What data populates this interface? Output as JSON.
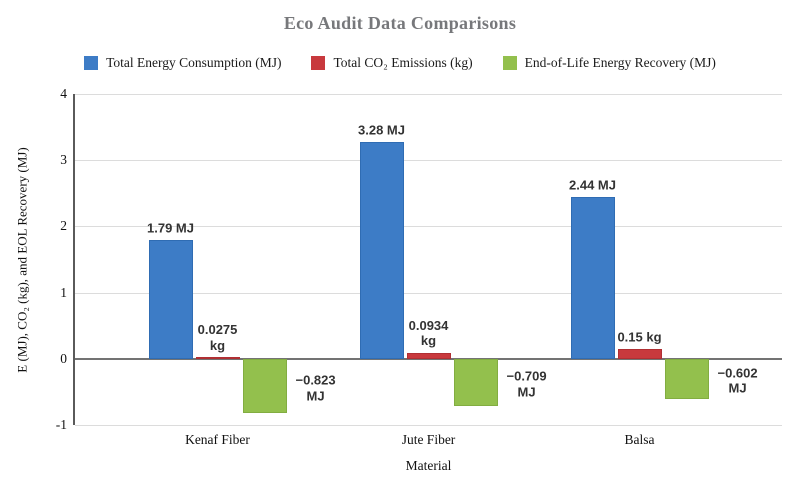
{
  "chart_data": {
    "type": "bar",
    "title": "Eco Audit Data Comparisons",
    "categories": [
      "Kenaf Fiber",
      "Jute Fiber",
      "Balsa"
    ],
    "series": [
      {
        "name": "Total Energy Consumption (MJ)",
        "color": "#3d7cc6",
        "border_color": "#2f6cb3",
        "values": [
          1.79,
          3.28,
          2.44
        ],
        "labels": [
          "1.79 MJ",
          "3.28 MJ",
          "2.44 MJ"
        ]
      },
      {
        "name": "Total CO₂ Emissions (kg)",
        "color": "#c8393d",
        "border_color": "#b02f33",
        "values": [
          0.0275,
          0.0934,
          0.15
        ],
        "labels": [
          "0.0275\nkg",
          "0.0934\nkg",
          "0.15 kg"
        ]
      },
      {
        "name": "End-of-Life Energy Recovery (MJ)",
        "color": "#93c04d",
        "border_color": "#82ad41",
        "values": [
          -0.823,
          -0.709,
          -0.602
        ],
        "labels": [
          "−0.823\nMJ",
          "−0.709\nMJ",
          "−0.602\nMJ"
        ]
      }
    ],
    "xlabel": "Material",
    "ylabel": "E (MJ), CO₂ (kg), and EOL Recovery (MJ)",
    "ylim": [
      -1,
      4
    ],
    "yticks": [
      4,
      3,
      2,
      1,
      0,
      -1
    ],
    "grid": true,
    "legend_position": "top",
    "colors": {
      "title": "#77787b",
      "grid": "#dcdcdc",
      "zero_line": "#737373",
      "axis_line": "#5a5a5a",
      "data_label": "#333333"
    }
  }
}
